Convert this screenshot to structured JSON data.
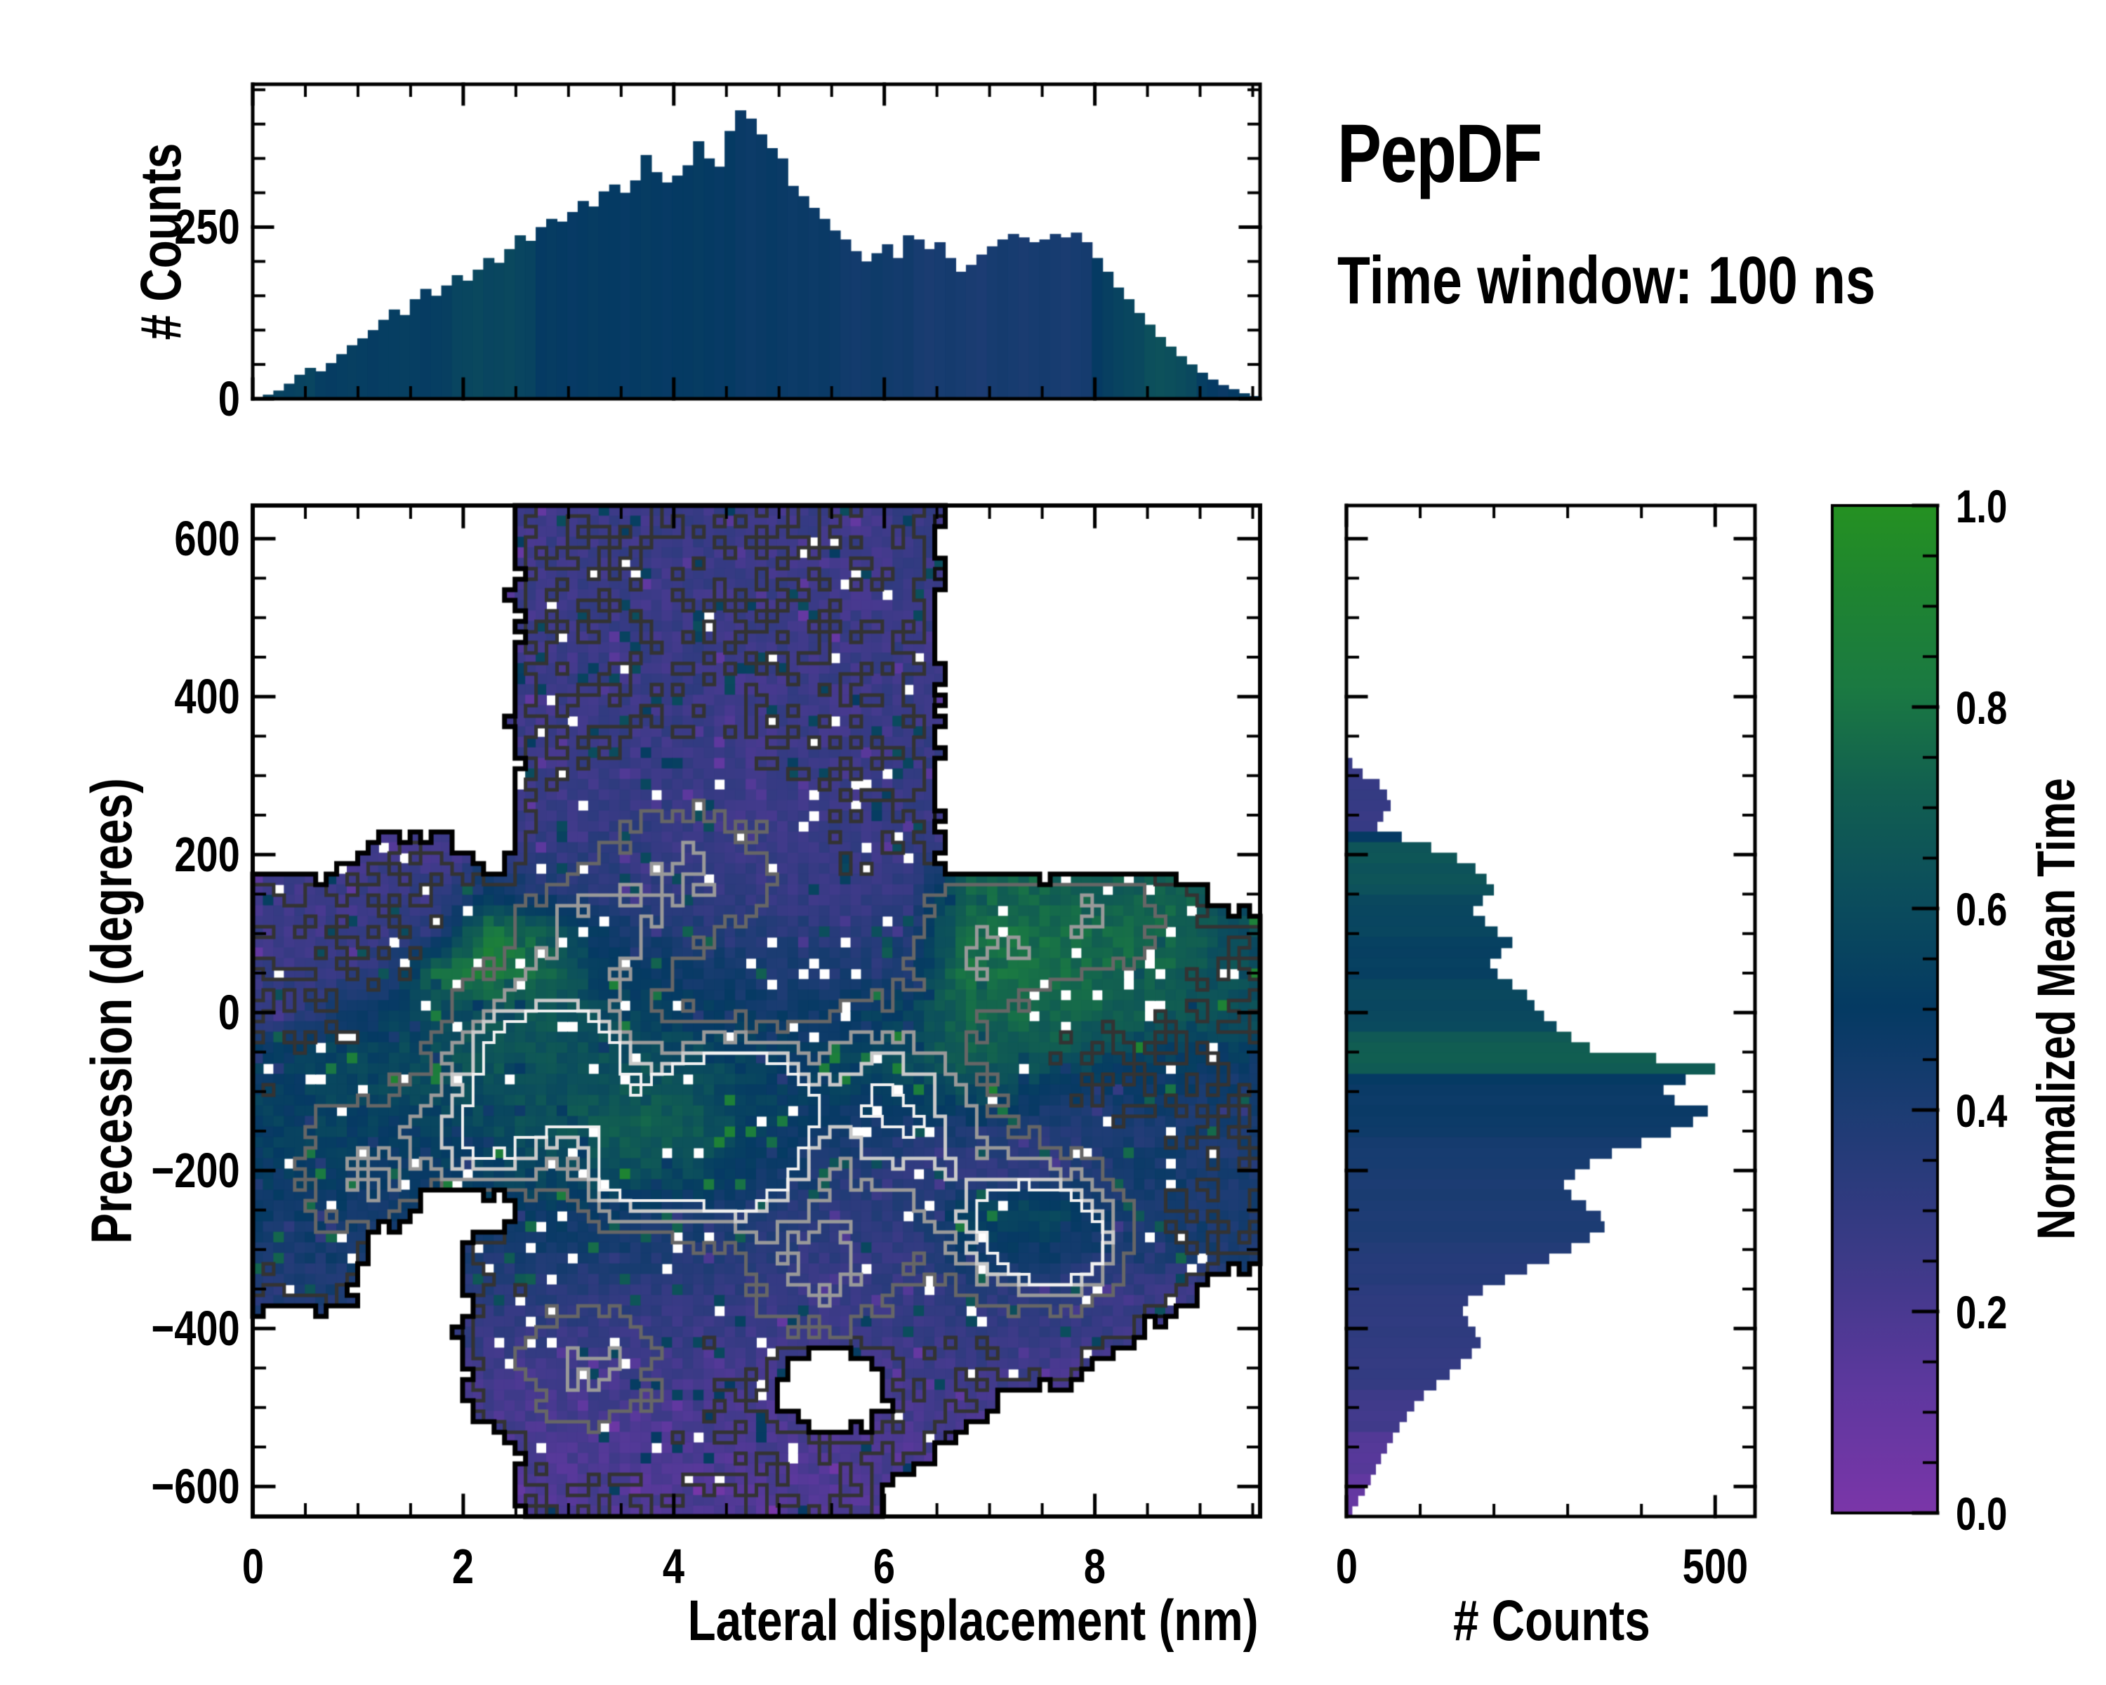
{
  "header": {
    "title": "PepDF",
    "subtitle": "Time window: 100 ns"
  },
  "colors": {
    "background": "#ffffff",
    "axis": "#000000",
    "contour_outer": "#000000",
    "colormap_stops": [
      [
        0.0,
        "#7b36a9"
      ],
      [
        0.12,
        "#5f389f"
      ],
      [
        0.25,
        "#3d3a88"
      ],
      [
        0.4,
        "#1c3c73"
      ],
      [
        0.5,
        "#053a63"
      ],
      [
        0.62,
        "#0c4f5c"
      ],
      [
        0.72,
        "#126050"
      ],
      [
        0.82,
        "#1b7a42"
      ],
      [
        0.92,
        "#1f8530"
      ],
      [
        1.0,
        "#259122"
      ]
    ]
  },
  "chart_data": [
    {
      "id": "top_histogram",
      "type": "bar",
      "orientation": "vertical",
      "ylabel": "# Counts",
      "ytick_values": [
        0,
        250
      ],
      "ytick_labels": [
        "0",
        "250"
      ],
      "ylim": [
        0,
        458
      ],
      "xlim": [
        0,
        9.6
      ],
      "minor_y_step": 50,
      "minor_x_step": 0.5,
      "bin_width_nm": 0.1,
      "x_start_nm": 0.05,
      "counts": [
        2,
        6,
        12,
        22,
        35,
        45,
        40,
        52,
        65,
        78,
        88,
        100,
        115,
        130,
        122,
        145,
        160,
        150,
        165,
        180,
        172,
        188,
        205,
        198,
        218,
        238,
        230,
        250,
        262,
        258,
        272,
        288,
        280,
        302,
        312,
        300,
        318,
        355,
        330,
        315,
        325,
        340,
        375,
        350,
        338,
        390,
        420,
        408,
        385,
        365,
        350,
        310,
        295,
        278,
        262,
        245,
        232,
        215,
        200,
        212,
        225,
        205,
        238,
        232,
        218,
        228,
        205,
        185,
        195,
        210,
        222,
        232,
        240,
        235,
        228,
        232,
        240,
        235,
        242,
        228,
        205,
        185,
        162,
        145,
        125,
        108,
        90,
        76,
        62,
        50,
        38,
        28,
        20,
        14,
        8,
        4
      ],
      "mean_time": [
        0.56,
        0.55,
        0.55,
        0.54,
        0.55,
        0.56,
        0.52,
        0.51,
        0.52,
        0.53,
        0.52,
        0.51,
        0.52,
        0.52,
        0.53,
        0.52,
        0.51,
        0.52,
        0.53,
        0.56,
        0.57,
        0.58,
        0.56,
        0.57,
        0.58,
        0.56,
        0.55,
        0.5,
        0.51,
        0.5,
        0.49,
        0.5,
        0.51,
        0.5,
        0.5,
        0.49,
        0.5,
        0.51,
        0.5,
        0.49,
        0.5,
        0.5,
        0.51,
        0.5,
        0.49,
        0.5,
        0.48,
        0.47,
        0.48,
        0.49,
        0.48,
        0.47,
        0.48,
        0.47,
        0.48,
        0.47,
        0.45,
        0.44,
        0.45,
        0.46,
        0.45,
        0.44,
        0.45,
        0.42,
        0.41,
        0.42,
        0.43,
        0.42,
        0.41,
        0.4,
        0.42,
        0.43,
        0.42,
        0.41,
        0.42,
        0.43,
        0.42,
        0.41,
        0.42,
        0.43,
        0.5,
        0.53,
        0.55,
        0.57,
        0.58,
        0.62,
        0.63,
        0.62,
        0.6,
        0.58,
        0.52,
        0.5,
        0.48,
        0.5,
        0.52,
        0.5
      ]
    },
    {
      "id": "main_heatmap",
      "type": "heatmap",
      "xlabel": "Lateral displacement (nm)",
      "ylabel": "Precession (degrees)",
      "xtick_values": [
        0,
        2,
        4,
        6,
        8
      ],
      "xtick_labels": [
        "0",
        "2",
        "4",
        "6",
        "8"
      ],
      "ytick_values": [
        600,
        400,
        200,
        0,
        -200,
        -400,
        -600
      ],
      "ytick_labels": [
        "600",
        "400",
        "200",
        "0",
        "−200",
        "−400",
        "−600"
      ],
      "xlim": [
        0,
        9.57
      ],
      "ylim": [
        -638,
        642
      ],
      "minor_x_step": 0.5,
      "minor_y_step": 50,
      "value_name": "normalized mean time",
      "grid_x_centers_nm": [
        0.25,
        0.75,
        1.25,
        1.75,
        2.25,
        2.75,
        3.25,
        3.75,
        4.25,
        4.75,
        5.25,
        5.75,
        6.25,
        6.75,
        7.25,
        7.75,
        8.25,
        8.75,
        9.25
      ],
      "grid_y_centers_deg": [
        300,
        250,
        200,
        150,
        100,
        50,
        0,
        -50,
        -100,
        -150,
        -200,
        -250,
        -300,
        -350,
        -400,
        -450,
        -500,
        -550,
        -600
      ],
      "grid_mean_time": [
        [
          null,
          null,
          null,
          null,
          null,
          0.25,
          0.27,
          0.26,
          0.27,
          0.25,
          0.26,
          0.25,
          0.27,
          null,
          null,
          null,
          null,
          null,
          null
        ],
        [
          null,
          null,
          null,
          null,
          null,
          0.27,
          0.28,
          0.3,
          0.27,
          0.26,
          0.27,
          0.26,
          0.28,
          null,
          null,
          null,
          null,
          null,
          null
        ],
        [
          null,
          null,
          0.24,
          0.25,
          null,
          0.3,
          0.32,
          0.3,
          0.28,
          0.27,
          0.28,
          0.27,
          0.28,
          null,
          null,
          null,
          null,
          null,
          null
        ],
        [
          0.24,
          0.25,
          0.26,
          0.3,
          0.45,
          0.4,
          0.35,
          0.33,
          0.3,
          0.3,
          0.28,
          0.28,
          0.3,
          0.72,
          0.74,
          0.72,
          0.7,
          0.72,
          null
        ],
        [
          0.25,
          0.26,
          0.28,
          0.35,
          0.85,
          0.7,
          0.5,
          0.42,
          0.38,
          0.38,
          0.36,
          0.34,
          0.36,
          0.76,
          0.78,
          0.76,
          0.75,
          0.74,
          0.6
        ],
        [
          0.28,
          0.3,
          0.35,
          0.8,
          0.85,
          0.75,
          0.55,
          0.48,
          0.45,
          0.42,
          0.4,
          0.4,
          0.45,
          0.78,
          0.77,
          0.76,
          0.74,
          0.72,
          0.62
        ],
        [
          0.3,
          0.4,
          0.48,
          0.58,
          0.62,
          0.66,
          0.6,
          0.52,
          0.5,
          0.48,
          0.45,
          0.5,
          0.55,
          0.74,
          0.75,
          0.73,
          0.7,
          0.68,
          0.62
        ],
        [
          0.5,
          0.55,
          0.58,
          0.6,
          0.68,
          0.66,
          0.62,
          0.6,
          0.58,
          0.52,
          0.5,
          0.55,
          0.6,
          0.7,
          0.7,
          0.66,
          0.58,
          0.52,
          0.5
        ],
        [
          0.52,
          0.55,
          0.56,
          0.58,
          0.6,
          0.62,
          0.64,
          0.66,
          0.62,
          0.55,
          0.5,
          0.52,
          0.56,
          0.6,
          0.55,
          0.48,
          0.45,
          0.46,
          0.44
        ],
        [
          0.52,
          0.54,
          0.5,
          0.52,
          0.58,
          0.62,
          0.68,
          0.72,
          0.68,
          0.52,
          0.46,
          0.44,
          0.4,
          0.42,
          0.38,
          0.36,
          0.4,
          0.42,
          0.42
        ],
        [
          0.5,
          0.52,
          0.48,
          0.5,
          0.52,
          0.56,
          0.6,
          0.62,
          0.58,
          0.46,
          0.42,
          0.36,
          0.32,
          0.3,
          0.3,
          0.34,
          0.42,
          0.44,
          0.4
        ],
        [
          0.46,
          0.48,
          0.44,
          null,
          null,
          0.5,
          0.48,
          0.46,
          0.44,
          0.4,
          0.36,
          0.34,
          0.36,
          0.52,
          0.58,
          0.55,
          0.4,
          0.44,
          0.42
        ],
        [
          0.42,
          0.44,
          null,
          null,
          0.42,
          0.44,
          0.42,
          0.4,
          0.38,
          0.36,
          0.32,
          0.3,
          0.3,
          0.46,
          0.5,
          0.45,
          0.4,
          0.42,
          0.4
        ],
        [
          0.36,
          0.4,
          null,
          null,
          0.34,
          0.36,
          0.35,
          0.34,
          0.33,
          0.3,
          0.28,
          0.28,
          0.3,
          0.34,
          0.35,
          0.33,
          0.3,
          0.28,
          null
        ],
        [
          null,
          null,
          null,
          null,
          0.3,
          0.3,
          0.29,
          0.28,
          0.28,
          0.27,
          0.26,
          0.26,
          0.28,
          0.3,
          0.3,
          0.28,
          0.26,
          null,
          null
        ],
        [
          null,
          null,
          null,
          null,
          0.24,
          0.25,
          0.24,
          0.25,
          0.24,
          0.23,
          null,
          null,
          0.24,
          0.26,
          0.25,
          0.23,
          null,
          null,
          null
        ],
        [
          null,
          null,
          null,
          null,
          0.22,
          0.22,
          0.23,
          0.22,
          0.22,
          0.21,
          null,
          null,
          0.22,
          0.22,
          null,
          null,
          null,
          null,
          null
        ],
        [
          null,
          null,
          null,
          null,
          null,
          0.2,
          0.2,
          0.21,
          0.2,
          0.2,
          0.2,
          0.2,
          0.2,
          null,
          null,
          null,
          null,
          null,
          null
        ],
        [
          null,
          null,
          null,
          null,
          null,
          0.18,
          0.19,
          0.18,
          0.19,
          0.18,
          0.18,
          0.18,
          null,
          null,
          null,
          null,
          null,
          null,
          null
        ]
      ],
      "density_hotspots": [
        {
          "x": 2.6,
          "y": -60,
          "sx": 0.5,
          "sy": 60,
          "amp": 0.7
        },
        {
          "x": 3.1,
          "y": -80,
          "sx": 0.33,
          "sy": 45,
          "amp": 0.75
        },
        {
          "x": 4.35,
          "y": -130,
          "sx": 0.5,
          "sy": 60,
          "amp": 0.95
        },
        {
          "x": 4.75,
          "y": -125,
          "sx": 0.3,
          "sy": 40,
          "amp": 0.85
        },
        {
          "x": 4.5,
          "y": -185,
          "sx": 0.45,
          "sy": 50,
          "amp": 0.9
        },
        {
          "x": 3.55,
          "y": -205,
          "sx": 0.3,
          "sy": 40,
          "amp": 0.65
        },
        {
          "x": 2.25,
          "y": -160,
          "sx": 0.4,
          "sy": 50,
          "amp": 0.55
        },
        {
          "x": 7.35,
          "y": -270,
          "sx": 0.5,
          "sy": 55,
          "amp": 0.8
        },
        {
          "x": 7.7,
          "y": -295,
          "sx": 0.3,
          "sy": 35,
          "amp": 0.7
        },
        {
          "x": 4.2,
          "y": 180,
          "sx": 0.55,
          "sy": 65,
          "amp": 0.3
        },
        {
          "x": 3.2,
          "y": 90,
          "sx": 0.5,
          "sy": 60,
          "amp": 0.35
        },
        {
          "x": 5.9,
          "y": -85,
          "sx": 0.55,
          "sy": 65,
          "amp": 0.4
        },
        {
          "x": 3.2,
          "y": -450,
          "sx": 0.45,
          "sy": 55,
          "amp": 0.33
        },
        {
          "x": 6.9,
          "y": 80,
          "sx": 0.5,
          "sy": 60,
          "amp": 0.3
        },
        {
          "x": 8.05,
          "y": 125,
          "sx": 0.45,
          "sy": 55,
          "amp": 0.28
        },
        {
          "x": 1.1,
          "y": -200,
          "sx": 0.5,
          "sy": 70,
          "amp": 0.3
        },
        {
          "x": 5.4,
          "y": -320,
          "sx": 0.5,
          "sy": 60,
          "amp": 0.35
        },
        {
          "x": 6.3,
          "y": -160,
          "sx": 0.5,
          "sy": 60,
          "amp": 0.4
        }
      ],
      "contour_levels": [
        {
          "level": 0.14,
          "color": "#111111",
          "width": 5
        },
        {
          "level": 0.3,
          "color": "#333333",
          "width": 5
        },
        {
          "level": 0.46,
          "color": "#666666",
          "width": 5
        },
        {
          "level": 0.62,
          "color": "#999999",
          "width": 5
        },
        {
          "level": 0.78,
          "color": "#c9c9c9",
          "width": 5
        },
        {
          "level": 0.9,
          "color": "#f1f1f1",
          "width": 4
        }
      ]
    },
    {
      "id": "right_histogram",
      "type": "bar",
      "orientation": "horizontal",
      "xlabel": "# Counts",
      "xtick_values": [
        0,
        500
      ],
      "xtick_labels": [
        "0",
        "500"
      ],
      "xlim": [
        0,
        554
      ],
      "minor_x_step": 100,
      "bin_width_deg": 13.333,
      "deg_start": 640,
      "counts": [
        0,
        0,
        0,
        0,
        0,
        0,
        0,
        0,
        0,
        0,
        0,
        0,
        0,
        0,
        0,
        0,
        0,
        0,
        0,
        0,
        0,
        0,
        0,
        0,
        8,
        22,
        45,
        55,
        60,
        50,
        42,
        75,
        115,
        150,
        175,
        190,
        200,
        185,
        172,
        188,
        205,
        225,
        210,
        195,
        205,
        225,
        245,
        255,
        268,
        285,
        305,
        330,
        420,
        500,
        460,
        430,
        445,
        490,
        470,
        440,
        400,
        360,
        330,
        310,
        295,
        305,
        325,
        345,
        350,
        330,
        305,
        275,
        245,
        215,
        185,
        165,
        158,
        165,
        175,
        182,
        170,
        155,
        140,
        122,
        105,
        92,
        82,
        72,
        63,
        55,
        47,
        40,
        33,
        25,
        16,
        8
      ],
      "mean_time": [
        0,
        0,
        0,
        0,
        0,
        0,
        0,
        0,
        0,
        0,
        0,
        0,
        0,
        0,
        0,
        0,
        0,
        0,
        0,
        0,
        0,
        0,
        0,
        0,
        0.28,
        0.27,
        0.28,
        0.29,
        0.28,
        0.27,
        0.28,
        0.5,
        0.65,
        0.66,
        0.64,
        0.65,
        0.63,
        0.58,
        0.57,
        0.56,
        0.57,
        0.54,
        0.53,
        0.54,
        0.53,
        0.57,
        0.58,
        0.57,
        0.58,
        0.59,
        0.68,
        0.7,
        0.71,
        0.69,
        0.5,
        0.48,
        0.47,
        0.48,
        0.47,
        0.46,
        0.43,
        0.42,
        0.42,
        0.41,
        0.4,
        0.41,
        0.4,
        0.39,
        0.4,
        0.39,
        0.37,
        0.36,
        0.35,
        0.36,
        0.33,
        0.32,
        0.32,
        0.31,
        0.32,
        0.31,
        0.3,
        0.29,
        0.3,
        0.29,
        0.25,
        0.24,
        0.23,
        0.24,
        0.17,
        0.16,
        0.15,
        0.16,
        0.11,
        0.1,
        0.09,
        0.1
      ]
    },
    {
      "id": "colorbar",
      "type": "colorbar",
      "label": "Normalized Mean Time",
      "tick_values": [
        0.0,
        0.2,
        0.4,
        0.6,
        0.8,
        1.0
      ],
      "tick_labels": [
        "0.0",
        "0.2",
        "0.4",
        "0.6",
        "0.8",
        "1.0"
      ],
      "minor_step": 0.05,
      "range": [
        0.0,
        1.0
      ]
    }
  ]
}
